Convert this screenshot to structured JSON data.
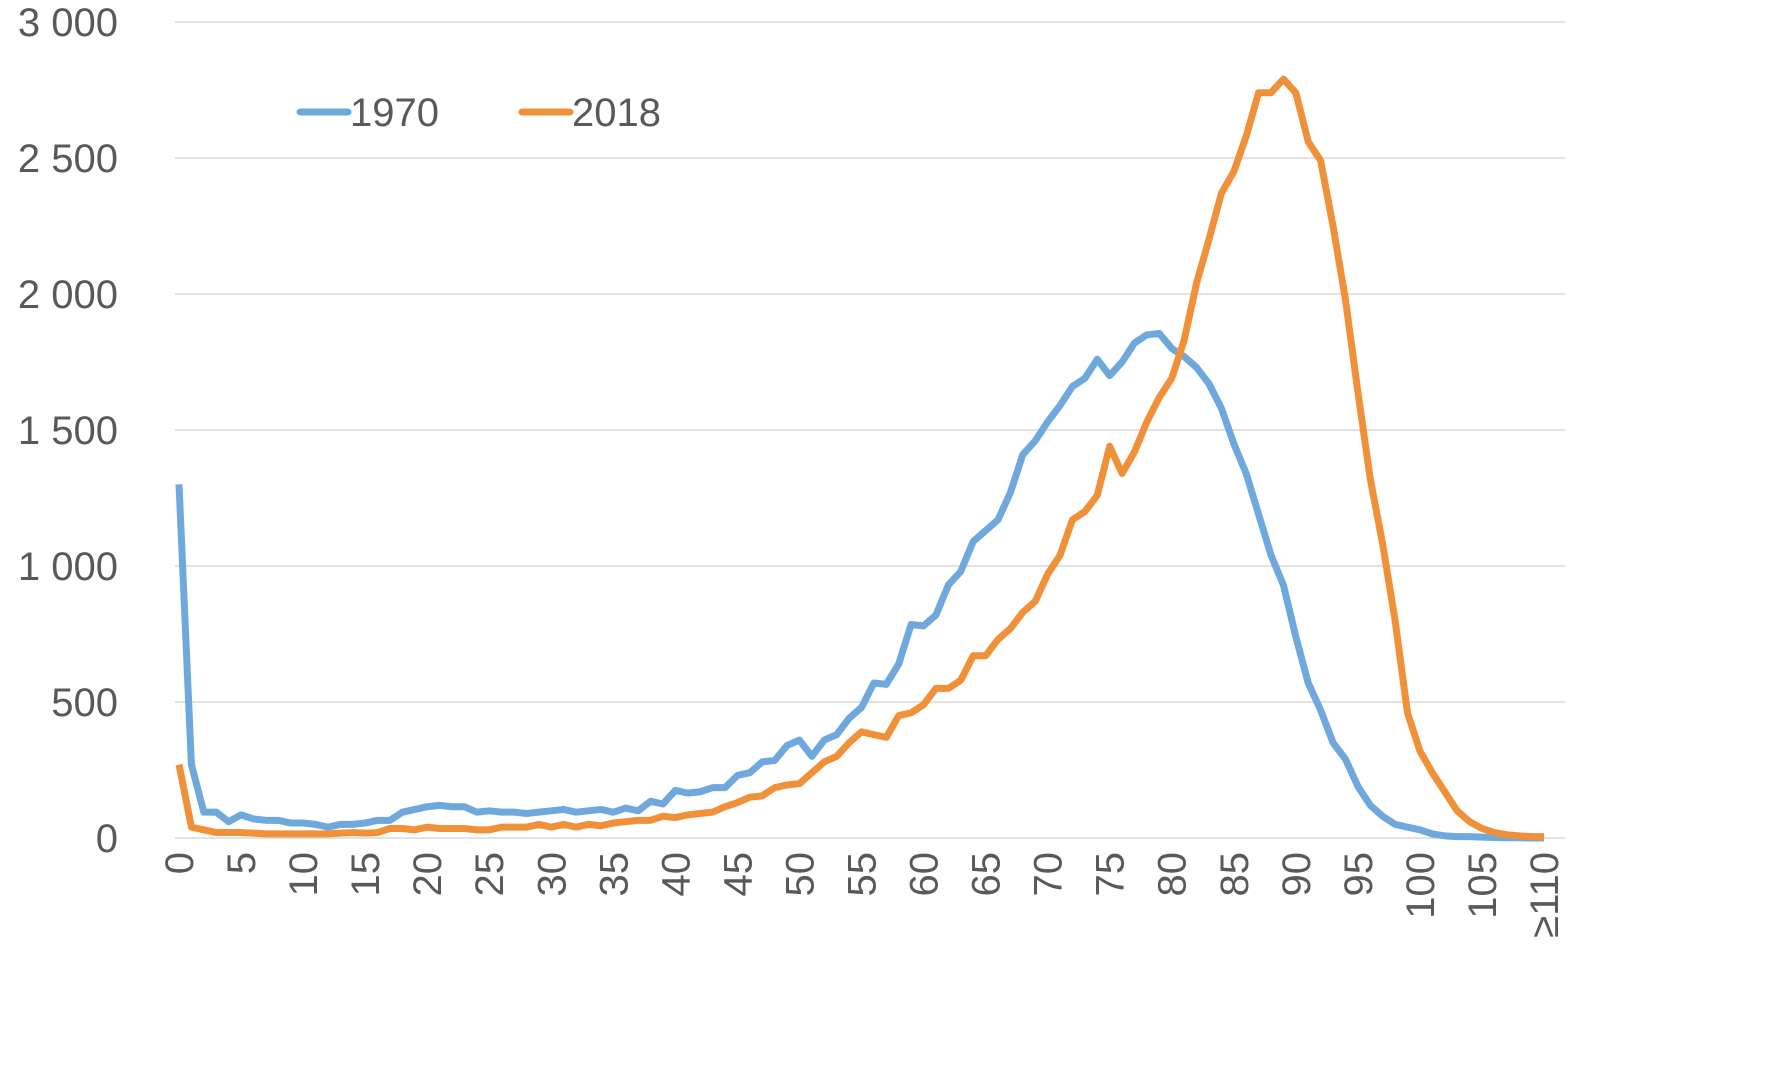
{
  "chart_data": {
    "type": "line",
    "categories": [
      0,
      null,
      null,
      null,
      null,
      5,
      null,
      null,
      null,
      null,
      10,
      null,
      null,
      null,
      null,
      15,
      null,
      null,
      null,
      null,
      20,
      null,
      null,
      null,
      null,
      25,
      null,
      null,
      null,
      null,
      30,
      null,
      null,
      null,
      null,
      35,
      null,
      null,
      null,
      null,
      40,
      null,
      null,
      null,
      null,
      45,
      null,
      null,
      null,
      null,
      50,
      null,
      null,
      null,
      null,
      55,
      null,
      null,
      null,
      null,
      60,
      null,
      null,
      null,
      null,
      65,
      null,
      null,
      null,
      null,
      70,
      null,
      null,
      null,
      null,
      75,
      null,
      null,
      null,
      null,
      80,
      null,
      null,
      null,
      null,
      85,
      null,
      null,
      null,
      null,
      90,
      null,
      null,
      null,
      null,
      95,
      null,
      null,
      null,
      null,
      100,
      null,
      null,
      null,
      null,
      105,
      null,
      null,
      null,
      null,
      "≥110"
    ],
    "series": [
      {
        "name": "1970",
        "color": "#6fa8dc",
        "values": [
          1300,
          270,
          95,
          95,
          60,
          85,
          70,
          65,
          65,
          55,
          55,
          50,
          40,
          50,
          50,
          55,
          65,
          65,
          95,
          105,
          115,
          120,
          115,
          115,
          95,
          100,
          95,
          95,
          90,
          95,
          100,
          105,
          95,
          100,
          105,
          95,
          110,
          100,
          135,
          125,
          175,
          165,
          170,
          185,
          185,
          230,
          240,
          280,
          285,
          340,
          360,
          300,
          360,
          380,
          440,
          480,
          570,
          565,
          640,
          785,
          780,
          820,
          930,
          980,
          1090,
          1130,
          1170,
          1270,
          1410,
          1460,
          1530,
          1590,
          1660,
          1690,
          1760,
          1700,
          1750,
          1820,
          1850,
          1855,
          1800,
          1770,
          1730,
          1670,
          1580,
          1450,
          1340,
          1190,
          1040,
          930,
          740,
          570,
          470,
          350,
          290,
          190,
          120,
          80,
          50,
          40,
          30,
          15,
          8,
          5,
          5,
          3,
          2,
          1,
          1,
          0,
          0
        ]
      },
      {
        "name": "2018",
        "color": "#f0913a",
        "values": [
          270,
          40,
          30,
          20,
          20,
          20,
          18,
          15,
          15,
          15,
          15,
          15,
          15,
          18,
          20,
          18,
          20,
          35,
          35,
          30,
          40,
          35,
          35,
          35,
          30,
          30,
          40,
          40,
          40,
          50,
          40,
          50,
          40,
          50,
          45,
          55,
          60,
          65,
          65,
          80,
          75,
          85,
          90,
          95,
          115,
          130,
          150,
          155,
          185,
          195,
          200,
          240,
          280,
          300,
          350,
          390,
          380,
          370,
          450,
          460,
          490,
          550,
          550,
          580,
          670,
          670,
          730,
          770,
          830,
          870,
          970,
          1040,
          1170,
          1200,
          1260,
          1440,
          1340,
          1420,
          1530,
          1620,
          1690,
          1830,
          2040,
          2200,
          2370,
          2450,
          2580,
          2740,
          2740,
          2790,
          2740,
          2560,
          2490,
          2250,
          1980,
          1640,
          1320,
          1080,
          800,
          460,
          320,
          240,
          170,
          100,
          60,
          35,
          20,
          12,
          8,
          5,
          5
        ]
      }
    ],
    "ylim": [
      0,
      3000
    ],
    "yticks": [
      0,
      500,
      {
        "value": 1000,
        "label": "1 000"
      },
      {
        "value": 1500,
        "label": "1 500"
      },
      {
        "value": 2000,
        "label": "2 000"
      },
      {
        "value": 2500,
        "label": "2 500"
      },
      {
        "value": 3000,
        "label": "3 000"
      }
    ],
    "grid": true,
    "legend": "upper left"
  }
}
